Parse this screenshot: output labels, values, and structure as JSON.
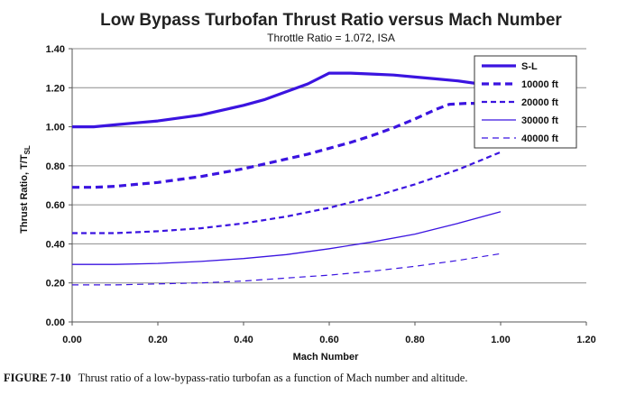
{
  "chart_data": {
    "type": "line",
    "title": "Low Bypass Turbofan Thrust Ratio versus Mach Number",
    "subtitle": "Throttle Ratio = 1.072, ISA",
    "xlabel": "Mach Number",
    "ylabel": "Thrust Ratio, T/T",
    "ylabel_subscript": "SL",
    "xlim": [
      0,
      1.2
    ],
    "ylim": [
      0,
      1.4
    ],
    "x_ticks": [
      "0.00",
      "0.20",
      "0.40",
      "0.60",
      "0.80",
      "1.00",
      "1.20"
    ],
    "y_ticks": [
      "0.00",
      "0.20",
      "0.40",
      "0.60",
      "0.80",
      "1.00",
      "1.20",
      "1.40"
    ],
    "grid": "horizontal",
    "legend_position": "top-right",
    "line_color": "#3b14e0",
    "series": [
      {
        "name": "S-L",
        "style": "solid-thick",
        "x": [
          0,
          0.05,
          0.1,
          0.15,
          0.2,
          0.25,
          0.3,
          0.35,
          0.4,
          0.45,
          0.5,
          0.55,
          0.6,
          0.65,
          0.7,
          0.75,
          0.8,
          0.85,
          0.9,
          0.95,
          1.0
        ],
        "y": [
          1.0,
          1.0,
          1.01,
          1.02,
          1.03,
          1.045,
          1.06,
          1.085,
          1.11,
          1.14,
          1.18,
          1.22,
          1.275,
          1.275,
          1.27,
          1.265,
          1.255,
          1.245,
          1.235,
          1.22,
          1.205
        ]
      },
      {
        "name": "10000 ft",
        "style": "dash-thick",
        "x": [
          0,
          0.05,
          0.1,
          0.15,
          0.2,
          0.25,
          0.3,
          0.35,
          0.4,
          0.45,
          0.5,
          0.55,
          0.6,
          0.65,
          0.7,
          0.75,
          0.8,
          0.85,
          0.88,
          0.92,
          0.96,
          1.0
        ],
        "y": [
          0.69,
          0.69,
          0.695,
          0.705,
          0.715,
          0.73,
          0.745,
          0.765,
          0.785,
          0.81,
          0.835,
          0.86,
          0.89,
          0.92,
          0.955,
          0.995,
          1.04,
          1.09,
          1.115,
          1.12,
          1.12,
          1.115
        ]
      },
      {
        "name": "20000 ft",
        "style": "dash",
        "x": [
          0,
          0.1,
          0.2,
          0.3,
          0.4,
          0.5,
          0.6,
          0.7,
          0.8,
          0.9,
          1.0
        ],
        "y": [
          0.455,
          0.455,
          0.465,
          0.48,
          0.505,
          0.54,
          0.585,
          0.64,
          0.705,
          0.78,
          0.87
        ]
      },
      {
        "name": "30000 ft",
        "style": "solid-thin",
        "x": [
          0,
          0.1,
          0.2,
          0.3,
          0.4,
          0.5,
          0.6,
          0.7,
          0.8,
          0.9,
          1.0
        ],
        "y": [
          0.295,
          0.295,
          0.3,
          0.31,
          0.325,
          0.345,
          0.375,
          0.41,
          0.45,
          0.505,
          0.565
        ]
      },
      {
        "name": "40000 ft",
        "style": "dash-thin",
        "x": [
          0,
          0.1,
          0.2,
          0.3,
          0.4,
          0.5,
          0.6,
          0.7,
          0.8,
          0.9,
          1.0
        ],
        "y": [
          0.19,
          0.19,
          0.195,
          0.2,
          0.21,
          0.225,
          0.24,
          0.26,
          0.285,
          0.315,
          0.35
        ]
      }
    ]
  },
  "caption": {
    "label": "FIGURE 7-10",
    "text": "Thrust ratio of a low-bypass-ratio turbofan as a function of Mach number and altitude."
  }
}
